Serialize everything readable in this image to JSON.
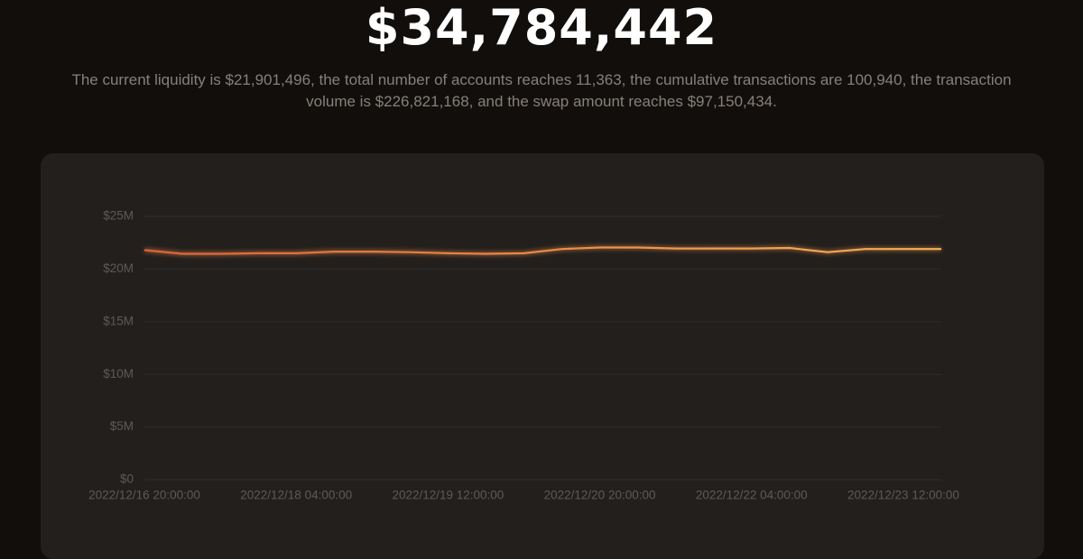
{
  "header": {
    "amount": "$34,784,442",
    "description": "The current liquidity is $21,901,496, the total number of accounts reaches 11,363, the cumulative transactions are 100,940, the transaction volume is $226,821,168, and the swap amount reaches $97,150,434."
  },
  "chart_data": {
    "type": "line",
    "categories": [
      "2022/12/16 20:00:00",
      null,
      null,
      null,
      "2022/12/18 04:00:00",
      null,
      null,
      null,
      "2022/12/19 12:00:00",
      null,
      null,
      null,
      "2022/12/20 20:00:00",
      null,
      null,
      null,
      "2022/12/22 04:00:00",
      null,
      null,
      null,
      "2022/12/23 12:00:00",
      null
    ],
    "values": [
      21800000,
      21450000,
      21450000,
      21500000,
      21500000,
      21650000,
      21650000,
      21600000,
      21500000,
      21450000,
      21500000,
      21900000,
      22050000,
      22050000,
      21950000,
      21950000,
      21950000,
      22000000,
      21600000,
      21900000,
      21900000,
      21900000
    ],
    "color": "#e98a44",
    "ylim": [
      0,
      25000000
    ],
    "yticks": [
      {
        "value": 0,
        "label": "$0"
      },
      {
        "value": 5000000,
        "label": "$5M"
      },
      {
        "value": 10000000,
        "label": "$10M"
      },
      {
        "value": 15000000,
        "label": "$15M"
      },
      {
        "value": 20000000,
        "label": "$20M"
      },
      {
        "value": 25000000,
        "label": "$25M"
      }
    ],
    "grid": true
  }
}
